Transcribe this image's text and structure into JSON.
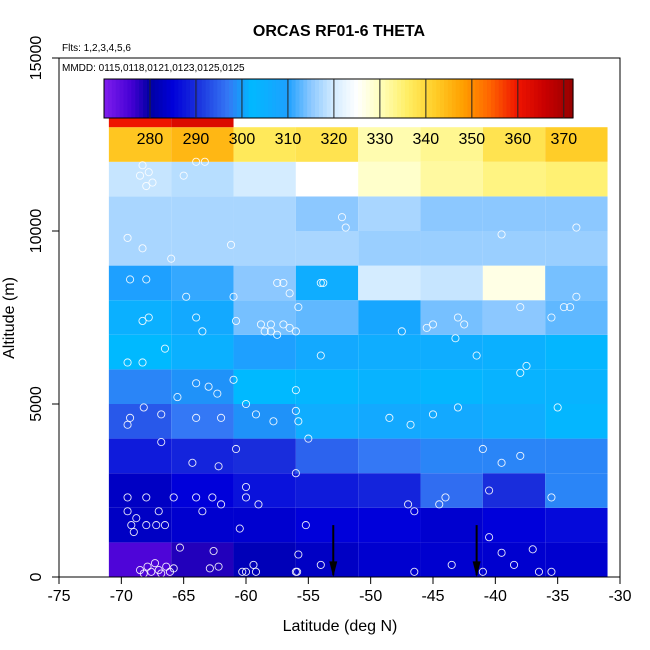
{
  "chart_data": {
    "type": "heatmap",
    "title": "ORCAS RF01-6 THETA",
    "xlabel": "Latitude (deg N)",
    "ylabel": "Altitude (m)",
    "xlim": [
      -75,
      -30
    ],
    "ylim": [
      0,
      15000
    ],
    "x_ticks": [
      -75,
      -70,
      -65,
      -60,
      -55,
      -50,
      -45,
      -40,
      -35,
      -30
    ],
    "x_tick_labels": [
      "-75",
      "-70",
      "-65",
      "-60",
      "-55",
      "-50",
      "-45",
      "-40",
      "-35",
      "-30"
    ],
    "y_ticks": [
      0,
      5000,
      10000,
      15000
    ],
    "y_tick_labels": [
      "0",
      "5000",
      "10000",
      "15000"
    ],
    "info_lines": [
      "Flts: 1,2,3,4,5,6",
      "MMDD: 0115,0118,0121,0123,0125,0125"
    ],
    "colorbar": {
      "min": 270,
      "max": 372,
      "ticks": [
        280,
        290,
        300,
        310,
        320,
        330,
        340,
        350,
        360,
        370
      ],
      "tick_labels": [
        "280",
        "290",
        "300",
        "310",
        "320",
        "330",
        "340",
        "350",
        "360",
        "370"
      ]
    },
    "lat_bins": [
      -71,
      -66,
      -61,
      -56,
      -51,
      -46,
      -41,
      -36,
      -31
    ],
    "alt_bin_height": 1000,
    "theta_grid": [
      [
        275,
        278,
        282,
        283,
        284,
        284,
        284,
        284
      ],
      [
        283,
        284,
        284,
        285,
        285,
        284,
        285,
        286
      ],
      [
        283,
        285,
        287,
        288,
        289,
        296,
        290,
        298
      ],
      [
        288,
        289,
        290,
        295,
        297,
        298,
        298,
        298
      ],
      [
        294,
        297,
        299,
        306,
        307,
        307,
        306,
        303
      ],
      [
        298,
        299,
        302,
        303,
        304,
        303,
        304,
        304
      ],
      [
        302,
        305,
        310,
        307,
        306,
        306,
        305,
        303
      ],
      [
        305,
        307,
        314,
        313,
        308,
        314,
        315,
        313
      ],
      [
        310,
        311,
        315,
        306,
        320,
        319,
        327,
        314
      ],
      [
        317,
        317,
        317,
        317,
        316,
        316,
        316,
        316
      ],
      [
        317,
        317,
        317,
        315,
        317,
        315,
        315,
        315
      ],
      [
        319,
        318,
        320,
        325,
        329,
        332,
        334,
        335
      ],
      [
        343,
        345,
        337,
        338,
        331,
        333,
        338,
        342
      ],
      [
        360,
        363,
        null,
        null,
        null,
        null,
        null,
        null
      ]
    ],
    "points": [
      [
        -68.5,
        200
      ],
      [
        -68.2,
        100
      ],
      [
        -67.9,
        300
      ],
      [
        -67.6,
        150
      ],
      [
        -67.3,
        400
      ],
      [
        -67.0,
        200
      ],
      [
        -66.8,
        100
      ],
      [
        -66.4,
        300
      ],
      [
        -66.1,
        150
      ],
      [
        -65.8,
        250
      ],
      [
        -65.3,
        850
      ],
      [
        -62.9,
        250
      ],
      [
        -62.6,
        750
      ],
      [
        -62.2,
        300
      ],
      [
        -60.3,
        150
      ],
      [
        -60.0,
        150
      ],
      [
        -59.4,
        350
      ],
      [
        -59.2,
        150
      ],
      [
        -56.0,
        150
      ],
      [
        -55.9,
        150
      ],
      [
        -55.8,
        650
      ],
      [
        -54.0,
        350
      ],
      [
        -46.5,
        150
      ],
      [
        -43.5,
        350
      ],
      [
        -41.0,
        150
      ],
      [
        -40.5,
        1150
      ],
      [
        -39.5,
        700
      ],
      [
        -38.5,
        350
      ],
      [
        -37.0,
        800
      ],
      [
        -36.5,
        150
      ],
      [
        -35.5,
        150
      ],
      [
        -69.5,
        1900
      ],
      [
        -69.2,
        1500
      ],
      [
        -69.0,
        1300
      ],
      [
        -68.8,
        1700
      ],
      [
        -68.0,
        1500
      ],
      [
        -67.2,
        1500
      ],
      [
        -67.0,
        1900
      ],
      [
        -66.5,
        1500
      ],
      [
        -65.8,
        2300
      ],
      [
        -69.5,
        2300
      ],
      [
        -68.0,
        2300
      ],
      [
        -64.0,
        2300
      ],
      [
        -63.5,
        1900
      ],
      [
        -62.7,
        2300
      ],
      [
        -62.0,
        2100
      ],
      [
        -60.5,
        1400
      ],
      [
        -60.0,
        2600
      ],
      [
        -60.0,
        2300
      ],
      [
        -59.0,
        2100
      ],
      [
        -55.2,
        1500
      ],
      [
        -47.0,
        2100
      ],
      [
        -46.5,
        1900
      ],
      [
        -44.5,
        2100
      ],
      [
        -44.0,
        2300
      ],
      [
        -40.5,
        2500
      ],
      [
        -35.5,
        2300
      ],
      [
        -66.8,
        3900
      ],
      [
        -64.3,
        3300
      ],
      [
        -62.2,
        3200
      ],
      [
        -60.8,
        3700
      ],
      [
        -56.0,
        3000
      ],
      [
        -55.0,
        4000
      ],
      [
        -41.0,
        3700
      ],
      [
        -39.5,
        3300
      ],
      [
        -38.0,
        3500
      ],
      [
        -69.5,
        4400
      ],
      [
        -69.3,
        4600
      ],
      [
        -68.2,
        4900
      ],
      [
        -66.8,
        4700
      ],
      [
        -64.0,
        4600
      ],
      [
        -62.0,
        4600
      ],
      [
        -60.0,
        5000
      ],
      [
        -59.2,
        4700
      ],
      [
        -57.8,
        4500
      ],
      [
        -56.0,
        4800
      ],
      [
        -55.8,
        4500
      ],
      [
        -48.5,
        4600
      ],
      [
        -46.8,
        4400
      ],
      [
        -45.0,
        4700
      ],
      [
        -43.0,
        4900
      ],
      [
        -35.0,
        4900
      ],
      [
        -65.5,
        5200
      ],
      [
        -64.0,
        5600
      ],
      [
        -63.0,
        5500
      ],
      [
        -62.3,
        5300
      ],
      [
        -61.0,
        5700
      ],
      [
        -56.0,
        5400
      ],
      [
        -69.5,
        6200
      ],
      [
        -68.3,
        6200
      ],
      [
        -66.5,
        6600
      ],
      [
        -58.0,
        7100
      ],
      [
        -56.5,
        7200
      ],
      [
        -54.0,
        6400
      ],
      [
        -47.5,
        7100
      ],
      [
        -45.5,
        7200
      ],
      [
        -43.2,
        6900
      ],
      [
        -41.5,
        6400
      ],
      [
        -38.0,
        5900
      ],
      [
        -37.5,
        6100
      ],
      [
        -68.3,
        7400
      ],
      [
        -67.8,
        7500
      ],
      [
        -64.0,
        7500
      ],
      [
        -63.5,
        7100
      ],
      [
        -60.8,
        7400
      ],
      [
        -58.8,
        7300
      ],
      [
        -58.5,
        7100
      ],
      [
        -58.0,
        7300
      ],
      [
        -57.5,
        7000
      ],
      [
        -57.0,
        7300
      ],
      [
        -56.0,
        7100
      ],
      [
        -55.8,
        7800
      ],
      [
        -45.0,
        7300
      ],
      [
        -43.0,
        7500
      ],
      [
        -42.5,
        7300
      ],
      [
        -38.0,
        7800
      ],
      [
        -35.5,
        7500
      ],
      [
        -34.5,
        7800
      ],
      [
        -34.0,
        7800
      ],
      [
        -69.3,
        8600
      ],
      [
        -68.0,
        8600
      ],
      [
        -64.8,
        8100
      ],
      [
        -61.0,
        8100
      ],
      [
        -57.5,
        8500
      ],
      [
        -57.0,
        8500
      ],
      [
        -56.5,
        8200
      ],
      [
        -54.0,
        8500
      ],
      [
        -53.8,
        8500
      ],
      [
        -33.5,
        8100
      ],
      [
        -69.5,
        9800
      ],
      [
        -68.3,
        9500
      ],
      [
        -66.0,
        9200
      ],
      [
        -61.2,
        9600
      ],
      [
        -52.3,
        10400
      ],
      [
        -52.0,
        10100
      ],
      [
        -39.5,
        9900
      ],
      [
        -33.5,
        10100
      ],
      [
        -68.3,
        11900
      ],
      [
        -68.5,
        11600
      ],
      [
        -67.8,
        11700
      ],
      [
        -67.5,
        11400
      ],
      [
        -68.0,
        11300
      ],
      [
        -65.0,
        11600
      ],
      [
        -64.0,
        12000
      ],
      [
        -63.3,
        12000
      ]
    ],
    "arrows_lat": [
      -53,
      -41.5
    ]
  }
}
